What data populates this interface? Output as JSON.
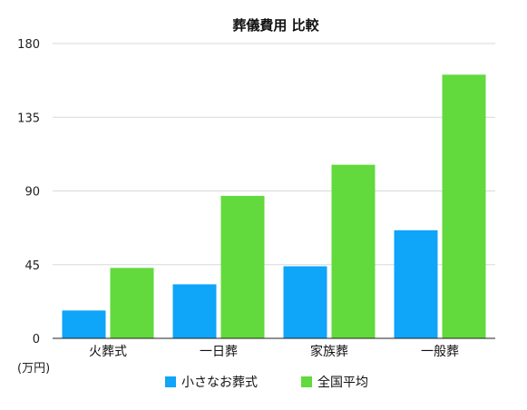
{
  "chart_data": {
    "type": "bar",
    "title": "葬儀費用 比較",
    "unit_label": "(万円)",
    "categories": [
      "火葬式",
      "一日葬",
      "家族葬",
      "一般葬"
    ],
    "series": [
      {
        "name": "小さなお葬式",
        "color": "#0fa5f8",
        "values": [
          17,
          33,
          44,
          66
        ]
      },
      {
        "name": "全国平均",
        "color": "#62d93c",
        "values": [
          43,
          87,
          106,
          161
        ]
      }
    ],
    "ylim": [
      0,
      180
    ],
    "yticks": [
      0,
      45,
      90,
      135,
      180
    ],
    "grid": true,
    "legend_position": "bottom"
  }
}
